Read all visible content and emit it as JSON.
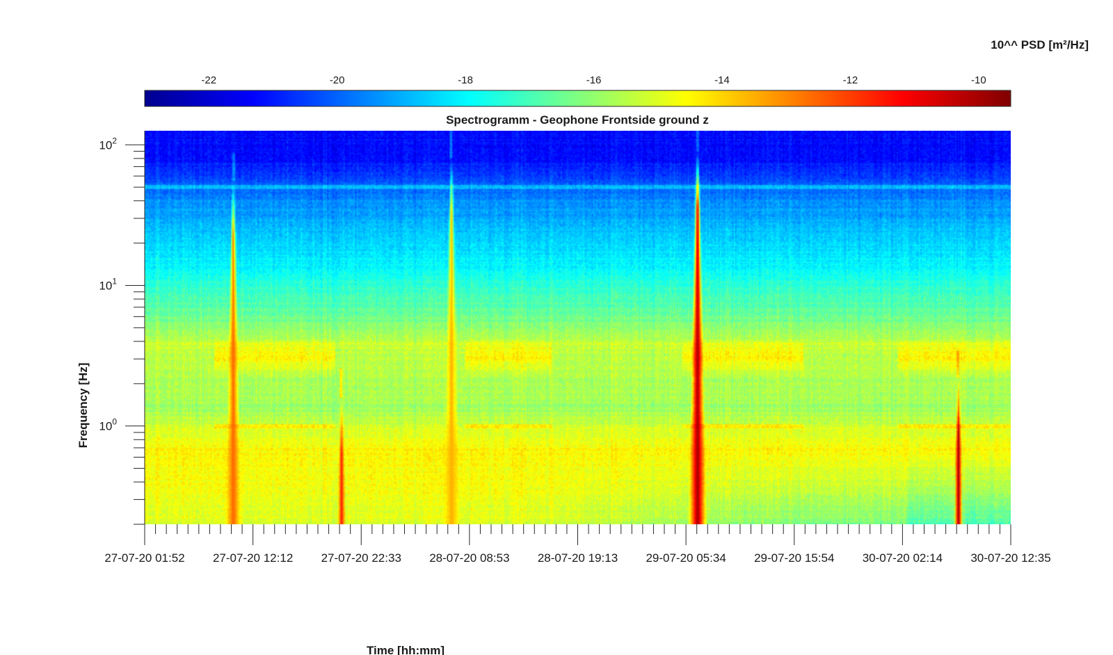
{
  "chart_data": {
    "type": "heatmap",
    "title": "Spectrogramm - Geophone Frontside ground z",
    "xlabel": "Time [hh:mm]",
    "ylabel": "Frequency [Hz]",
    "y_scale": "log",
    "ylim": [
      0.2,
      126
    ],
    "y_tick_values": [
      1,
      10,
      100
    ],
    "y_tick_labels": [
      {
        "base": "10",
        "exp": "0"
      },
      {
        "base": "10",
        "exp": "1"
      },
      {
        "base": "10",
        "exp": "2"
      }
    ],
    "x_tick_labels": [
      "27-07-20 01:52",
      "27-07-20 12:12",
      "27-07-20 22:33",
      "28-07-20 08:53",
      "28-07-20 19:13",
      "29-07-20 05:34",
      "29-07-20 15:54",
      "30-07-20 02:14",
      "30-07-20 12:35"
    ],
    "x_minor_ticks_per_major": 10,
    "colorbar": {
      "title": "10^^ PSD [m²/Hz]",
      "range": [
        -23,
        -9.5
      ],
      "ticks": [
        -22,
        -20,
        -18,
        -16,
        -14,
        -12,
        -10
      ],
      "tick_labels": [
        "-22",
        "-20",
        "-18",
        "-16",
        "-14",
        "-12",
        "-10"
      ],
      "colormap": "jet"
    },
    "features": [
      {
        "kind": "spike",
        "time": "27-07-20 10:20",
        "f_top": 55,
        "level": -12.5
      },
      {
        "kind": "spike",
        "time": "27-07-20 20:40",
        "f_top": 1.6,
        "level": -11.5
      },
      {
        "kind": "spike",
        "time": "28-07-20 07:10",
        "f_top": 80,
        "level": -13.5
      },
      {
        "kind": "spike",
        "time": "29-07-20 06:40",
        "f_top": 90,
        "level": -9.8
      },
      {
        "kind": "spike",
        "time": "30-07-20 07:35",
        "f_top": 2.2,
        "level": -9.8
      }
    ]
  }
}
